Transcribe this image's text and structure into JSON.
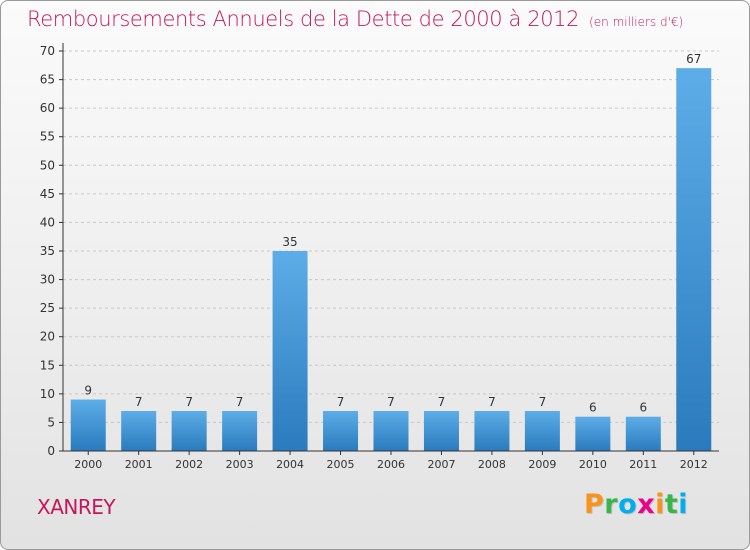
{
  "title": "Remboursements Annuels de la Dette de 2000 à 2012",
  "unit": "(en milliers d'€)",
  "commune": "XANREY",
  "logo": {
    "letters": [
      "P",
      "r",
      "o",
      "x",
      "i",
      "t",
      "i"
    ],
    "colors": [
      "#f7941d",
      "#39b54a",
      "#00aeef",
      "#ec008c",
      "#f7941d",
      "#39b54a",
      "#00aeef"
    ]
  },
  "colors": {
    "title": "#c2185b",
    "bar_top": "#5dade8",
    "bar_bottom": "#2a7bbd",
    "grid": "#c8c8c8",
    "axis": "#333333"
  },
  "chart_data": {
    "type": "bar",
    "title": "Remboursements Annuels de la Dette de 2000 à 2012",
    "xlabel": "",
    "ylabel": "",
    "categories": [
      "2000",
      "2001",
      "2002",
      "2003",
      "2004",
      "2005",
      "2006",
      "2007",
      "2008",
      "2009",
      "2010",
      "2011",
      "2012"
    ],
    "values": [
      9,
      7,
      7,
      7,
      35,
      7,
      7,
      7,
      7,
      7,
      6,
      6,
      67
    ],
    "ylim": [
      0,
      70
    ],
    "yticks": [
      0,
      5,
      10,
      15,
      20,
      25,
      30,
      35,
      40,
      45,
      50,
      55,
      60,
      65,
      70
    ],
    "grid": true
  }
}
